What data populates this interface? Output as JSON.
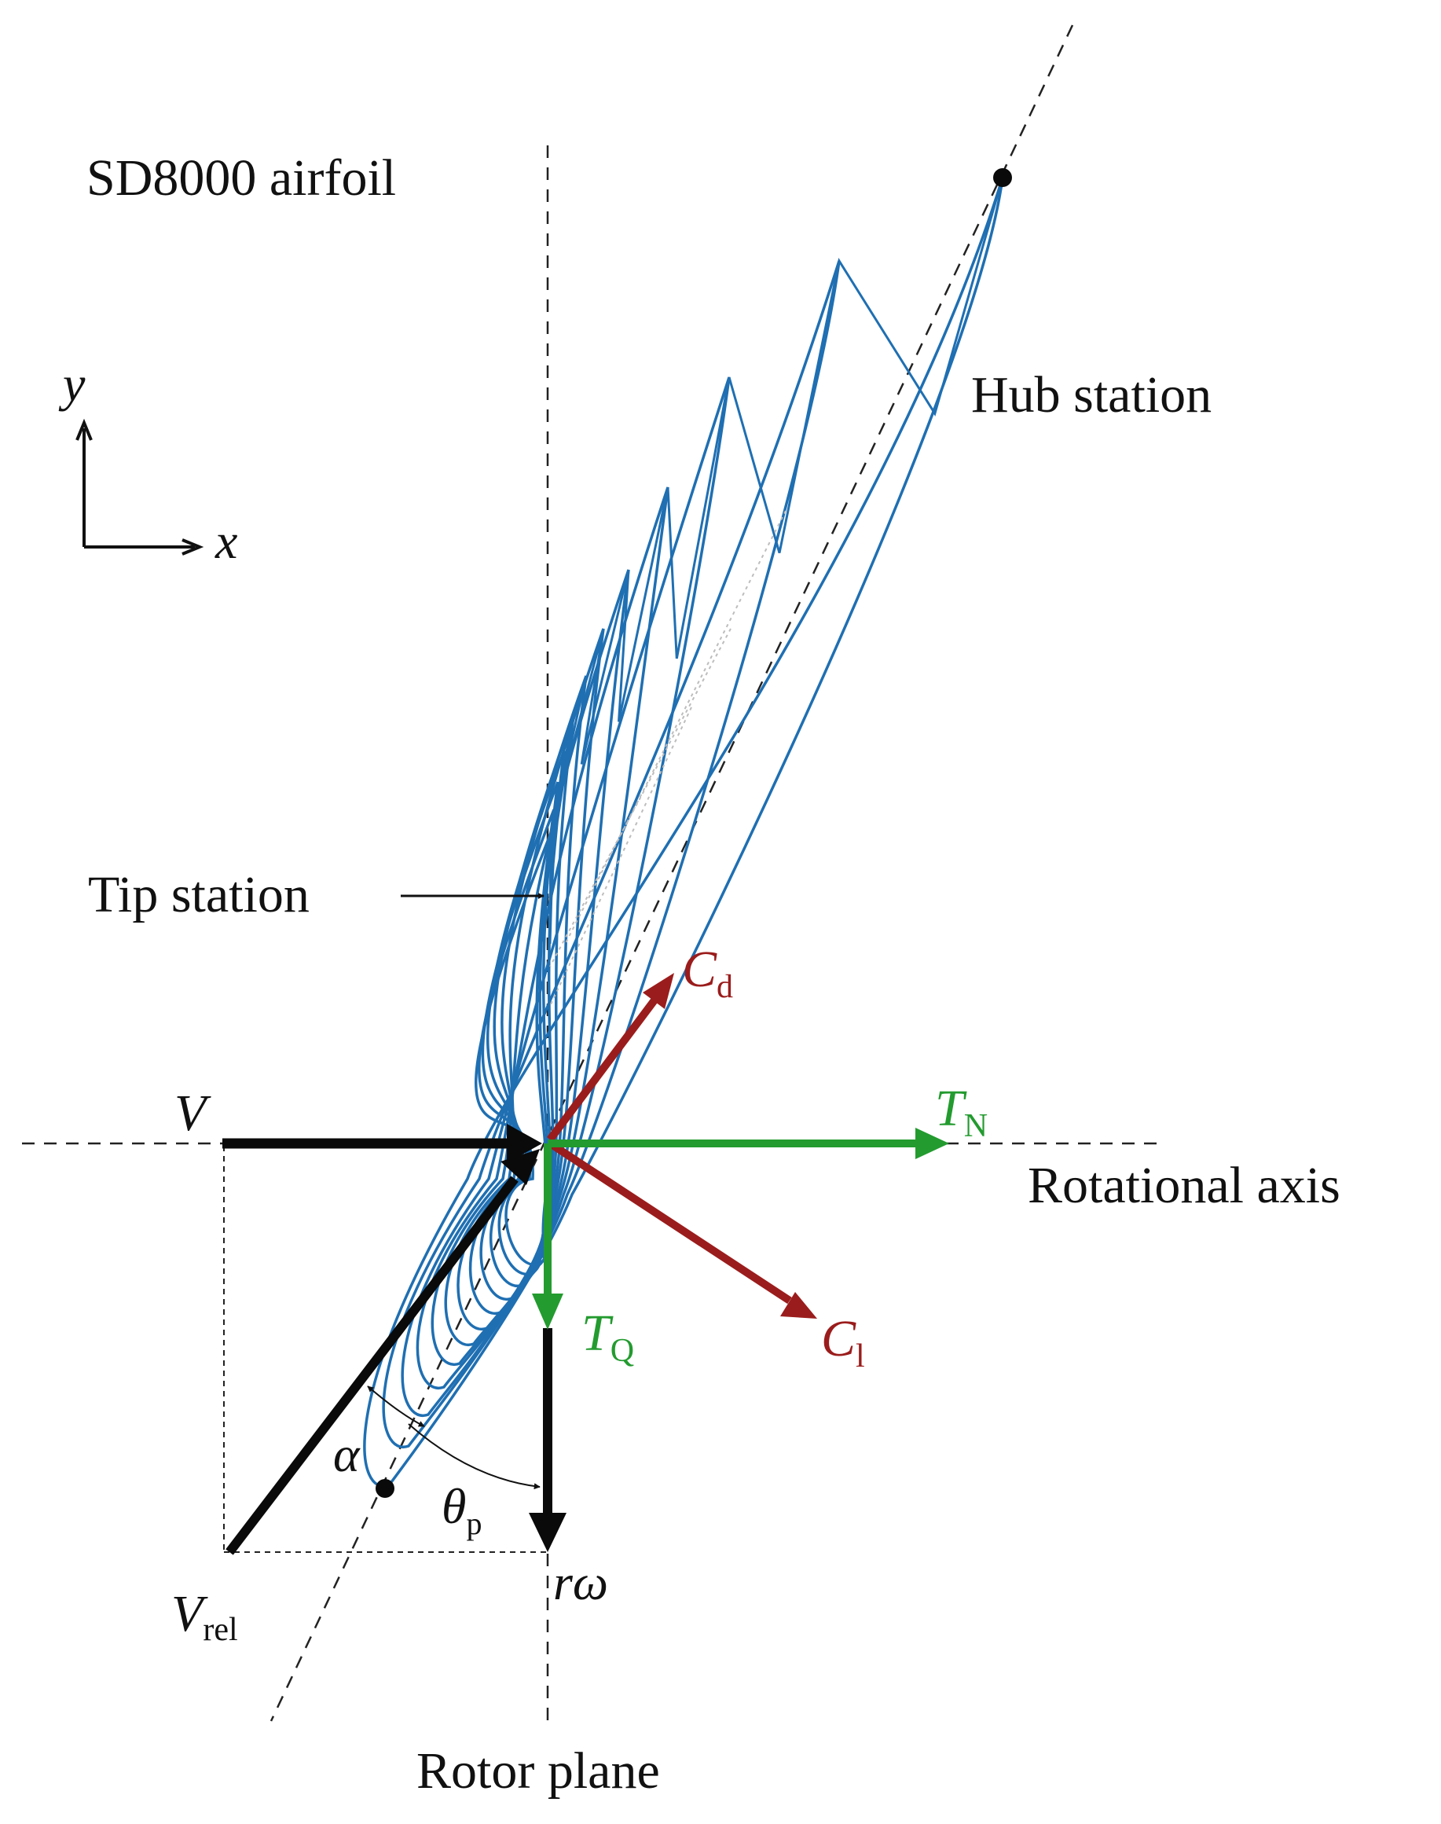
{
  "labels": {
    "airfoil": "SD8000 airfoil",
    "hub_station": "Hub station",
    "tip_station": "Tip station",
    "rotational_axis": "Rotational axis",
    "rotor_plane": "Rotor plane",
    "axis_y": "y",
    "axis_x": "x",
    "V": "V",
    "V_rel_main": "V",
    "V_rel_sub": "rel",
    "r_omega": "rω",
    "alpha": "α",
    "theta_main": "θ",
    "theta_sub": "p",
    "Cd_main": "C",
    "Cd_sub": "d",
    "Cl_main": "C",
    "Cl_sub": "l",
    "TN_main": "T",
    "TN_sub": "N",
    "TQ_main": "T",
    "TQ_sub": "Q"
  },
  "colors": {
    "blade": "#1f6fb2",
    "lift_drag": "#9b1c1c",
    "thrust_torque": "#239b2f",
    "velocity": "#0a0a0a",
    "section_outline": "#bdbdbd"
  }
}
